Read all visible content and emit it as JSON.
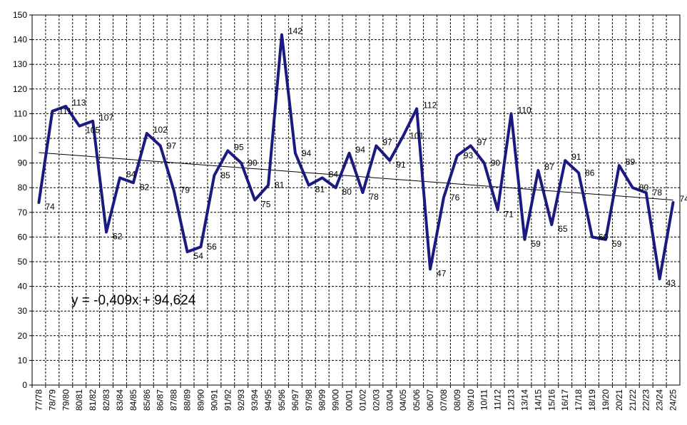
{
  "chart_data": {
    "type": "line",
    "title": "",
    "xlabel": "",
    "ylabel": "",
    "ylim": [
      0,
      150
    ],
    "y_ticks": [
      0,
      10,
      20,
      30,
      40,
      50,
      60,
      70,
      80,
      90,
      100,
      110,
      120,
      130,
      140,
      150
    ],
    "grid": true,
    "categories": [
      "77/78",
      "78/79",
      "79/80",
      "80/81",
      "81/82",
      "82/83",
      "83/84",
      "84/85",
      "85/86",
      "86/87",
      "87/88",
      "88/89",
      "89/90",
      "90/91",
      "91/92",
      "92/93",
      "93/94",
      "94/95",
      "95/96",
      "96/97",
      "97/98",
      "98/99",
      "99/00",
      "00/01",
      "01/02",
      "02/03",
      "03/04",
      "04/05",
      "05/06",
      "06/07",
      "07/08",
      "08/09",
      "09/10",
      "10/11",
      "11/12",
      "12/13",
      "13/14",
      "14/15",
      "15/16",
      "16/17",
      "17/18",
      "18/19",
      "19/20",
      "20/21",
      "21/22",
      "22/23",
      "23/24",
      "24/25"
    ],
    "series": [
      {
        "values": [
          74,
          111,
          113,
          105,
          107,
          62,
          84,
          82,
          102,
          97,
          79,
          54,
          56,
          85,
          95,
          90,
          75,
          81,
          142,
          94,
          81,
          84,
          80,
          94,
          78,
          97,
          91,
          101,
          112,
          47,
          76,
          93,
          97,
          90,
          71,
          110,
          59,
          87,
          65,
          91,
          86,
          60,
          59,
          89,
          80,
          78,
          43,
          74
        ],
        "color": "#1a1a80"
      }
    ],
    "data_labels": [
      "74",
      "111",
      "113",
      "105",
      "107",
      "62",
      "84",
      "82",
      "102",
      "97",
      "79",
      "54",
      "56",
      "85",
      "95",
      "90",
      "75",
      "81",
      "142",
      "94",
      "81",
      "84",
      "80",
      "94",
      "78",
      "97",
      "91",
      "101",
      "112",
      "47",
      "76",
      "93",
      "97",
      "90",
      "71",
      "110",
      "59",
      "87",
      "65",
      "91",
      "86",
      "60",
      "59",
      "89",
      "80",
      "78",
      "43",
      "74"
    ],
    "trendline": {
      "equation": "y = -0,409x + 94,624",
      "slope": -0.409,
      "intercept": 94.624,
      "color": "#000000"
    }
  }
}
